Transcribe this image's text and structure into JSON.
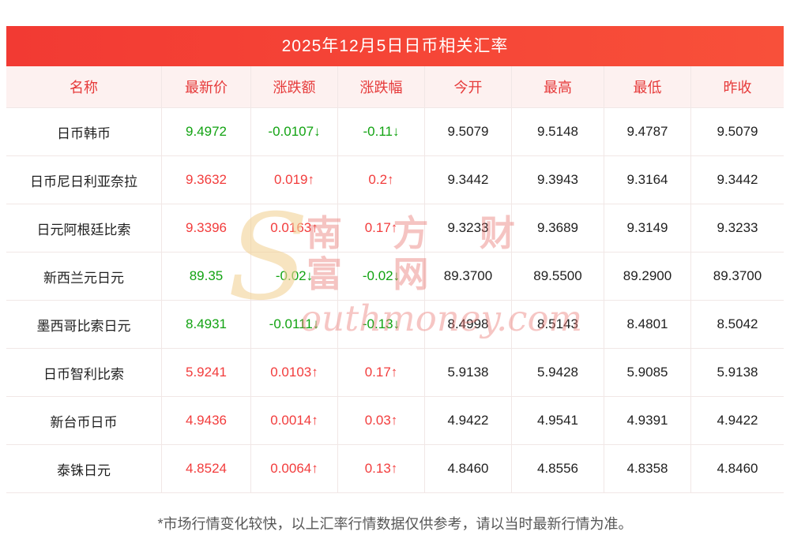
{
  "chart_data": {
    "type": "table",
    "title": "2025年12月5日日币相关汇率",
    "columns": [
      "名称",
      "最新价",
      "涨跌额",
      "涨跌幅",
      "今开",
      "最高",
      "最低",
      "昨收"
    ],
    "rows": [
      {
        "name": "日币韩币",
        "latest": "9.4972",
        "change": "-0.0107↓",
        "change_pct": "-0.11↓",
        "open": "9.5079",
        "high": "9.5148",
        "low": "9.4787",
        "prev_close": "9.5079",
        "trend": "down"
      },
      {
        "name": "日币尼日利亚奈拉",
        "latest": "9.3632",
        "change": "0.019↑",
        "change_pct": "0.2↑",
        "open": "9.3442",
        "high": "9.3943",
        "low": "9.3164",
        "prev_close": "9.3442",
        "trend": "up"
      },
      {
        "name": "日元阿根廷比索",
        "latest": "9.3396",
        "change": "0.0163↑",
        "change_pct": "0.17↑",
        "open": "9.3233",
        "high": "9.3689",
        "low": "9.3149",
        "prev_close": "9.3233",
        "trend": "up"
      },
      {
        "name": "新西兰元日元",
        "latest": "89.35",
        "change": "-0.02↓",
        "change_pct": "-0.02↓",
        "open": "89.3700",
        "high": "89.5500",
        "low": "89.2900",
        "prev_close": "89.3700",
        "trend": "down"
      },
      {
        "name": "墨西哥比索日元",
        "latest": "8.4931",
        "change": "-0.0111↓",
        "change_pct": "-0.13↓",
        "open": "8.4998",
        "high": "8.5143",
        "low": "8.4801",
        "prev_close": "8.5042",
        "trend": "down"
      },
      {
        "name": "日币智利比索",
        "latest": "5.9241",
        "change": "0.0103↑",
        "change_pct": "0.17↑",
        "open": "5.9138",
        "high": "5.9428",
        "low": "5.9085",
        "prev_close": "5.9138",
        "trend": "up"
      },
      {
        "name": "新台币日币",
        "latest": "4.9436",
        "change": "0.0014↑",
        "change_pct": "0.03↑",
        "open": "4.9422",
        "high": "4.9541",
        "low": "4.9391",
        "prev_close": "4.9422",
        "trend": "up"
      },
      {
        "name": "泰铢日元",
        "latest": "4.8524",
        "change": "0.0064↑",
        "change_pct": "0.13↑",
        "open": "4.8460",
        "high": "4.8556",
        "low": "4.8358",
        "prev_close": "4.8460",
        "trend": "up"
      }
    ]
  },
  "colors": {
    "up": "#f23c3c",
    "down": "#12a312",
    "title_bg": "#f23a33",
    "header_bg": "#fdf1f0",
    "header_text": "#e63a3a"
  },
  "watermark": {
    "big_letter": "S",
    "cn_text": "南 方 财 富 网",
    "latin_text": "outhmoney.com"
  },
  "footer": "*市场行情变化较快，以上汇率行情数据仅供参考，请以当时最新行情为准。"
}
